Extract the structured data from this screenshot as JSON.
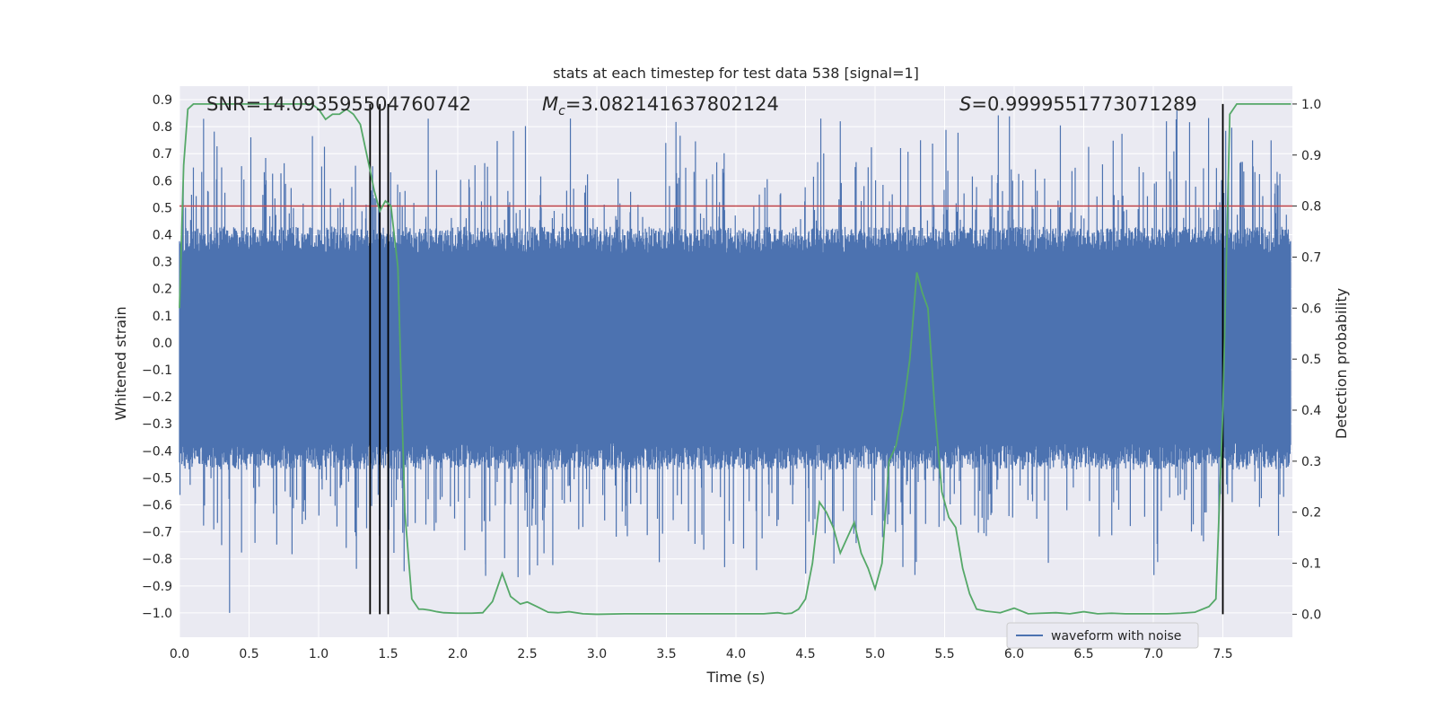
{
  "chart_data": {
    "type": "line",
    "title": "stats at each timestep for test data 538 [signal=1]",
    "xlabel": "Time (s)",
    "ylabel": "Whitened strain",
    "y2label": "Detection probability",
    "xlim": [
      0.0,
      8.0
    ],
    "ylim": [
      -1.09,
      0.95
    ],
    "y2lim": [
      -0.045,
      1.035
    ],
    "xticks": [
      0.0,
      0.5,
      1.0,
      1.5,
      2.0,
      2.5,
      3.0,
      3.5,
      4.0,
      4.5,
      5.0,
      5.5,
      6.0,
      6.5,
      7.0,
      7.5
    ],
    "xtick_labels": [
      "0.0",
      "0.5",
      "1.0",
      "1.5",
      "2.0",
      "2.5",
      "3.0",
      "3.5",
      "4.0",
      "4.5",
      "5.0",
      "5.5",
      "6.0",
      "6.5",
      "7.0",
      "7.5"
    ],
    "yticks": [
      0.9,
      0.8,
      0.7,
      0.6,
      0.5,
      0.4,
      0.3,
      0.2,
      0.1,
      0.0,
      -0.1,
      -0.2,
      -0.3,
      -0.4,
      -0.5,
      -0.6,
      -0.7,
      -0.8,
      -0.9,
      -1.0
    ],
    "ytick_labels": [
      "0.9",
      "0.8",
      "0.7",
      "0.6",
      "0.5",
      "0.4",
      "0.3",
      "0.2",
      "0.1",
      "0.0",
      "−0.1",
      "−0.2",
      "−0.3",
      "−0.4",
      "−0.5",
      "−0.6",
      "−0.7",
      "−0.8",
      "−0.9",
      "−1.0"
    ],
    "y2ticks": [
      1.0,
      0.9,
      0.8,
      0.7,
      0.6,
      0.5,
      0.4,
      0.3,
      0.2,
      0.1,
      0.0
    ],
    "y2tick_labels": [
      "1.0",
      "0.9",
      "0.8",
      "0.7",
      "0.6",
      "0.5",
      "0.4",
      "0.3",
      "0.2",
      "0.1",
      "0.0"
    ],
    "annotations": {
      "snr": "SNR=14.093595504760742",
      "mc_symbol": "M",
      "mc_sub": "c",
      "mc_value": "=3.082141637802124",
      "s_symbol": "S",
      "s_value": "=0.9999551773071289"
    },
    "threshold_y2": 0.8,
    "vertical_lines_x": [
      1.37,
      1.44,
      1.5,
      7.5
    ],
    "series": [
      {
        "name": "waveform with noise",
        "color": "#4c72b0",
        "description": "dense whitened strain trace sampled over 0-8 s, amplitude mostly within +/-0.45 with spikes to ~0.85 and down to -1.0"
      },
      {
        "name": "detection probability",
        "color": "#55a868",
        "axis": "right",
        "x": [
          0.0,
          0.03,
          0.06,
          0.1,
          0.15,
          0.2,
          0.3,
          0.4,
          0.5,
          0.6,
          0.7,
          0.8,
          0.9,
          0.95,
          1.0,
          1.05,
          1.1,
          1.15,
          1.2,
          1.25,
          1.3,
          1.37,
          1.4,
          1.44,
          1.48,
          1.52,
          1.57,
          1.62,
          1.67,
          1.72,
          1.75,
          1.8,
          1.85,
          1.9,
          2.0,
          2.1,
          2.18,
          2.25,
          2.32,
          2.38,
          2.45,
          2.5,
          2.57,
          2.65,
          2.72,
          2.8,
          2.9,
          3.0,
          3.2,
          3.4,
          3.6,
          3.8,
          4.0,
          4.2,
          4.3,
          4.35,
          4.4,
          4.45,
          4.5,
          4.55,
          4.6,
          4.65,
          4.7,
          4.75,
          4.8,
          4.85,
          4.9,
          4.95,
          5.0,
          5.05,
          5.1,
          5.15,
          5.2,
          5.25,
          5.3,
          5.34,
          5.38,
          5.43,
          5.48,
          5.53,
          5.58,
          5.63,
          5.68,
          5.73,
          5.8,
          5.9,
          6.0,
          6.1,
          6.2,
          6.3,
          6.4,
          6.5,
          6.6,
          6.7,
          6.8,
          6.9,
          7.0,
          7.1,
          7.2,
          7.3,
          7.4,
          7.45,
          7.5,
          7.55,
          7.6,
          7.65,
          7.7,
          7.8,
          7.9,
          7.99
        ],
        "values": [
          0.6,
          0.88,
          0.99,
          1.0,
          1.0,
          1.0,
          1.0,
          1.0,
          1.0,
          1.0,
          1.0,
          1.0,
          1.0,
          1.0,
          0.99,
          0.97,
          0.98,
          0.98,
          0.99,
          0.98,
          0.96,
          0.87,
          0.83,
          0.79,
          0.81,
          0.8,
          0.68,
          0.2,
          0.03,
          0.01,
          0.01,
          0.008,
          0.005,
          0.003,
          0.002,
          0.002,
          0.003,
          0.025,
          0.08,
          0.035,
          0.02,
          0.024,
          0.015,
          0.004,
          0.003,
          0.005,
          0.001,
          0.0,
          0.001,
          0.001,
          0.001,
          0.001,
          0.001,
          0.001,
          0.003,
          0.001,
          0.002,
          0.01,
          0.03,
          0.1,
          0.22,
          0.2,
          0.17,
          0.12,
          0.15,
          0.18,
          0.12,
          0.09,
          0.05,
          0.1,
          0.3,
          0.33,
          0.4,
          0.5,
          0.67,
          0.63,
          0.6,
          0.4,
          0.24,
          0.19,
          0.17,
          0.09,
          0.04,
          0.01,
          0.006,
          0.003,
          0.012,
          0.001,
          0.002,
          0.003,
          0.001,
          0.005,
          0.001,
          0.002,
          0.001,
          0.001,
          0.001,
          0.001,
          0.002,
          0.004,
          0.015,
          0.03,
          0.4,
          0.98,
          1.0,
          1.0,
          1.0,
          1.0,
          1.0,
          1.0
        ]
      }
    ],
    "legend": {
      "entries": [
        "waveform with noise"
      ],
      "placement": "lower-right"
    },
    "grid": true
  }
}
